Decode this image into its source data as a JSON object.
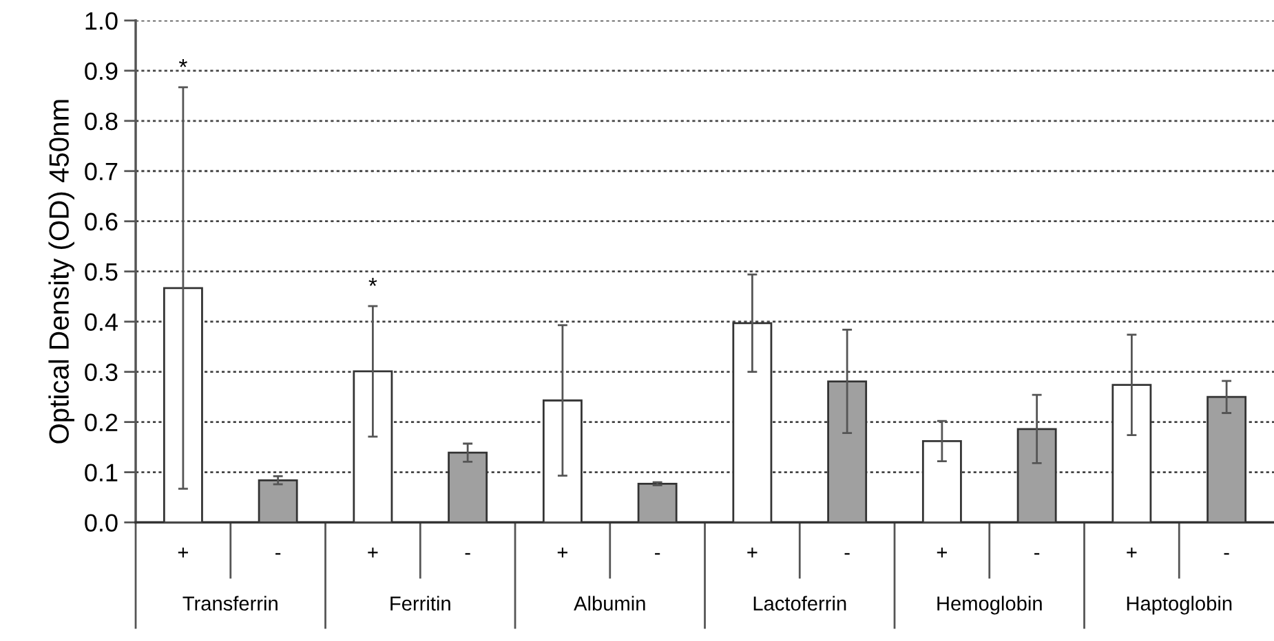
{
  "chart_data": {
    "type": "bar",
    "ylabel": "Optical Density (OD) 450nm",
    "categories": [
      "Transferrin",
      "Ferritin",
      "Albumin",
      "Lactoferrin",
      "Hemoglobin",
      "Haptoglobin"
    ],
    "series": [
      {
        "name": "+",
        "color": "#ffffff",
        "values": [
          0.467,
          0.301,
          0.243,
          0.397,
          0.162,
          0.274
        ],
        "errors": [
          0.4,
          0.13,
          0.15,
          0.097,
          0.04,
          0.1
        ]
      },
      {
        "name": "-",
        "color": "#a0a0a0",
        "values": [
          0.084,
          0.139,
          0.077,
          0.281,
          0.186,
          0.25
        ],
        "errors": [
          0.008,
          0.018,
          0.003,
          0.103,
          0.068,
          0.032
        ]
      }
    ],
    "ylim": [
      0,
      1.0
    ],
    "yticks": [
      {
        "value": 0,
        "label": "0.0"
      },
      0.1,
      0.2,
      0.3,
      0.4,
      0.5,
      0.6,
      0.7,
      0.8,
      0.9,
      {
        "value": 1.0,
        "label": "1.0"
      }
    ],
    "grid": "y",
    "legend": false,
    "annotations": [
      "*",
      "*"
    ]
  }
}
